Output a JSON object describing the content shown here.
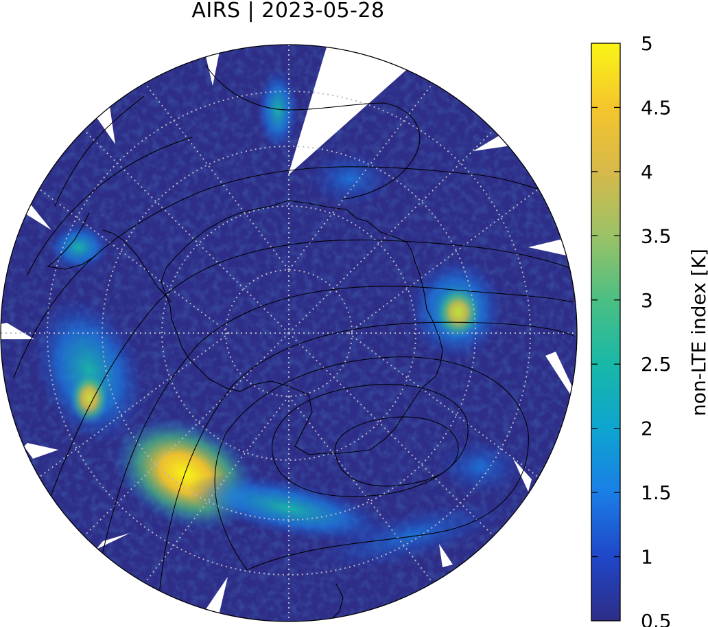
{
  "title": "AIRS | 2023-05-28",
  "colorbar": {
    "label": "non-LTE index [K]",
    "ticks": [
      "0.5",
      "1",
      "1.5",
      "2",
      "2.5",
      "3",
      "3.5",
      "4",
      "4.5",
      "5"
    ],
    "min": 0.5,
    "max": 5,
    "stops": [
      "#2e2d87",
      "#1f47c8",
      "#1a7ee6",
      "#0ea5d0",
      "#19b8a8",
      "#4bbf83",
      "#9bc267",
      "#d6b94a",
      "#f5c52c",
      "#f9f516"
    ]
  },
  "map": {
    "projection": "south-polar-stereographic",
    "background_color": "#2e2d87",
    "grid_style": "dotted-gray",
    "feature_colors": {
      "wave_moderate": "#1aa7c9",
      "wave_strong": "#f7d42a",
      "wave_weak": "#1f6fd4"
    }
  }
}
